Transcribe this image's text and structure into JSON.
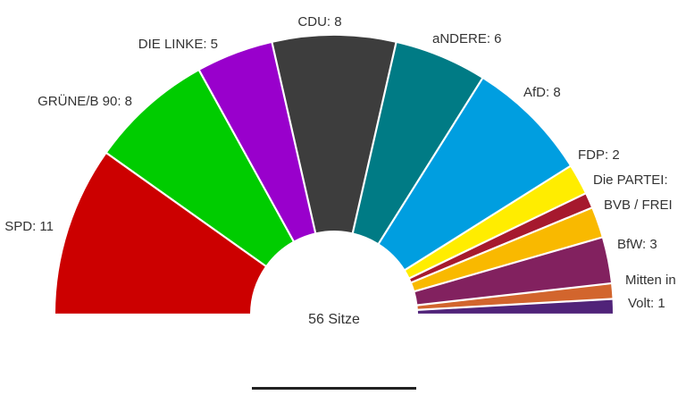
{
  "chart_data": {
    "type": "pie",
    "subtype": "parliament-semicircle",
    "title": "",
    "total_label": "56 Sitze",
    "total": 56,
    "slices": [
      {
        "name": "SPD",
        "value": 11,
        "label": "SPD: 11",
        "color": "#cc0000"
      },
      {
        "name": "GRÜNE/B 90",
        "value": 8,
        "label": "GRÜNE/B 90: 8",
        "color": "#00cc00"
      },
      {
        "name": "DIE LINKE",
        "value": 5,
        "label": "DIE LINKE: 5",
        "color": "#9900cc"
      },
      {
        "name": "CDU",
        "value": 8,
        "label": "CDU: 8",
        "color": "#3d3d3d"
      },
      {
        "name": "aNDERE",
        "value": 6,
        "label": "aNDERE: 6",
        "color": "#007b85"
      },
      {
        "name": "AfD",
        "value": 8,
        "label": "AfD: 8",
        "color": "#009ee0"
      },
      {
        "name": "FDP",
        "value": 2,
        "label": "FDP: 2",
        "color": "#ffed00"
      },
      {
        "name": "Die PARTEI",
        "value": 1,
        "label": "Die PARTEI:",
        "color": "#a6192e"
      },
      {
        "name": "BVB / FREIE WÄHLER",
        "value": 2,
        "label": "BVB / FREI",
        "color": "#f9b900"
      },
      {
        "name": "BfW",
        "value": 3,
        "label": "BfW: 3",
        "color": "#82215f"
      },
      {
        "name": "Mitten in",
        "value": 1,
        "label": "Mitten in",
        "color": "#d2652d"
      },
      {
        "name": "Volt",
        "value": 1,
        "label": "Volt: 1",
        "color": "#502379"
      }
    ]
  }
}
